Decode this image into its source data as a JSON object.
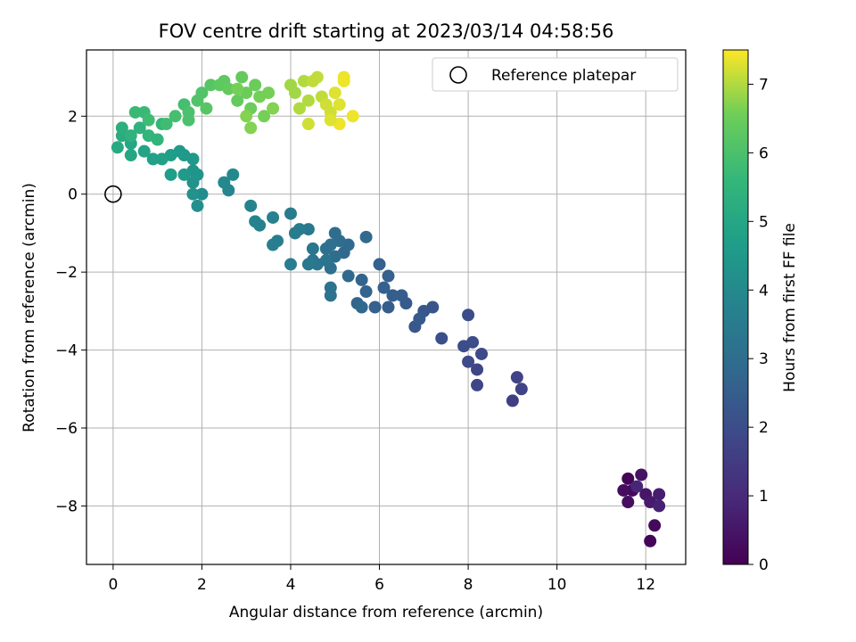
{
  "chart_data": {
    "type": "scatter",
    "title": "FOV centre drift starting at 2023/03/14 04:58:56",
    "xlabel": "Angular distance from reference (arcmin)",
    "ylabel": "Rotation from reference (arcmin)",
    "xlim": [
      -0.6,
      12.9
    ],
    "ylim": [
      -9.5,
      3.7
    ],
    "xticks": [
      0,
      2,
      4,
      6,
      8,
      10,
      12
    ],
    "yticks": [
      -8,
      -6,
      -4,
      -2,
      0,
      2
    ],
    "xtick_labels": [
      "0",
      "2",
      "4",
      "6",
      "8",
      "10",
      "12"
    ],
    "ytick_labels": [
      "−8",
      "−6",
      "−4",
      "−2",
      "0",
      "2"
    ],
    "grid": true,
    "colormap": "viridis",
    "colorbar": {
      "label": "Hours from first FF file",
      "range": [
        0,
        7.5
      ],
      "ticks": [
        0,
        1,
        2,
        3,
        4,
        5,
        6,
        7
      ],
      "tick_labels": [
        "0",
        "1",
        "2",
        "3",
        "4",
        "5",
        "6",
        "7"
      ]
    },
    "legend": {
      "position": "top-right",
      "entries": [
        {
          "label": "Reference platepar",
          "marker": "open-circle"
        }
      ]
    },
    "reference_point": {
      "x": 0,
      "y": 0
    },
    "points": [
      {
        "x": 11.6,
        "y": -7.3,
        "c": 0.1
      },
      {
        "x": 11.7,
        "y": -7.6,
        "c": 0.2
      },
      {
        "x": 11.6,
        "y": -7.9,
        "c": 0.3
      },
      {
        "x": 11.9,
        "y": -7.2,
        "c": 0.4
      },
      {
        "x": 12.0,
        "y": -7.7,
        "c": 0.5
      },
      {
        "x": 12.1,
        "y": -7.9,
        "c": 0.6
      },
      {
        "x": 12.2,
        "y": -8.5,
        "c": 0.2
      },
      {
        "x": 12.1,
        "y": -8.9,
        "c": 0.1
      },
      {
        "x": 12.3,
        "y": -7.7,
        "c": 0.7
      },
      {
        "x": 12.3,
        "y": -8.0,
        "c": 0.8
      },
      {
        "x": 11.8,
        "y": -7.5,
        "c": 0.9
      },
      {
        "x": 11.5,
        "y": -7.6,
        "c": 0.3
      },
      {
        "x": 9.0,
        "y": -5.3,
        "c": 1.6
      },
      {
        "x": 9.2,
        "y": -5.0,
        "c": 1.7
      },
      {
        "x": 9.1,
        "y": -4.7,
        "c": 1.7
      },
      {
        "x": 8.2,
        "y": -4.9,
        "c": 1.8
      },
      {
        "x": 8.2,
        "y": -4.5,
        "c": 1.8
      },
      {
        "x": 8.0,
        "y": -4.3,
        "c": 1.9
      },
      {
        "x": 8.3,
        "y": -4.1,
        "c": 1.9
      },
      {
        "x": 8.1,
        "y": -3.8,
        "c": 2.0
      },
      {
        "x": 7.9,
        "y": -3.9,
        "c": 2.0
      },
      {
        "x": 8.0,
        "y": -3.1,
        "c": 2.0
      },
      {
        "x": 7.4,
        "y": -3.7,
        "c": 2.1
      },
      {
        "x": 7.2,
        "y": -2.9,
        "c": 2.2
      },
      {
        "x": 7.0,
        "y": -3.0,
        "c": 2.3
      },
      {
        "x": 6.8,
        "y": -3.4,
        "c": 2.3
      },
      {
        "x": 6.9,
        "y": -3.2,
        "c": 2.4
      },
      {
        "x": 6.6,
        "y": -2.8,
        "c": 2.4
      },
      {
        "x": 6.5,
        "y": -2.6,
        "c": 2.5
      },
      {
        "x": 6.2,
        "y": -2.9,
        "c": 2.5
      },
      {
        "x": 6.3,
        "y": -2.6,
        "c": 2.5
      },
      {
        "x": 6.1,
        "y": -2.4,
        "c": 2.6
      },
      {
        "x": 6.2,
        "y": -2.1,
        "c": 2.6
      },
      {
        "x": 6.0,
        "y": -1.8,
        "c": 2.6
      },
      {
        "x": 5.9,
        "y": -2.9,
        "c": 2.6
      },
      {
        "x": 5.7,
        "y": -2.5,
        "c": 2.7
      },
      {
        "x": 5.6,
        "y": -2.2,
        "c": 2.7
      },
      {
        "x": 5.5,
        "y": -2.8,
        "c": 2.7
      },
      {
        "x": 5.6,
        "y": -2.9,
        "c": 2.8
      },
      {
        "x": 5.3,
        "y": -2.1,
        "c": 2.8
      },
      {
        "x": 5.7,
        "y": -1.1,
        "c": 2.9
      },
      {
        "x": 5.3,
        "y": -1.3,
        "c": 2.9
      },
      {
        "x": 5.2,
        "y": -1.5,
        "c": 2.9
      },
      {
        "x": 5.1,
        "y": -1.2,
        "c": 3.0
      },
      {
        "x": 5.0,
        "y": -1.0,
        "c": 3.0
      },
      {
        "x": 5.0,
        "y": -1.6,
        "c": 3.0
      },
      {
        "x": 4.9,
        "y": -1.3,
        "c": 3.1
      },
      {
        "x": 4.9,
        "y": -1.9,
        "c": 3.1
      },
      {
        "x": 4.8,
        "y": -1.4,
        "c": 3.1
      },
      {
        "x": 4.8,
        "y": -1.7,
        "c": 3.2
      },
      {
        "x": 4.9,
        "y": -2.4,
        "c": 3.2
      },
      {
        "x": 4.9,
        "y": -2.6,
        "c": 3.2
      },
      {
        "x": 4.6,
        "y": -1.8,
        "c": 3.3
      },
      {
        "x": 4.5,
        "y": -1.7,
        "c": 3.3
      },
      {
        "x": 4.5,
        "y": -1.4,
        "c": 3.3
      },
      {
        "x": 4.4,
        "y": -1.8,
        "c": 3.4
      },
      {
        "x": 4.4,
        "y": -0.9,
        "c": 3.4
      },
      {
        "x": 4.2,
        "y": -0.9,
        "c": 3.5
      },
      {
        "x": 4.1,
        "y": -1.0,
        "c": 3.5
      },
      {
        "x": 4.0,
        "y": -0.5,
        "c": 3.5
      },
      {
        "x": 4.0,
        "y": -1.8,
        "c": 3.6
      },
      {
        "x": 3.7,
        "y": -1.2,
        "c": 3.6
      },
      {
        "x": 3.6,
        "y": -1.3,
        "c": 3.6
      },
      {
        "x": 3.6,
        "y": -0.6,
        "c": 3.7
      },
      {
        "x": 3.3,
        "y": -0.8,
        "c": 3.7
      },
      {
        "x": 3.2,
        "y": -0.7,
        "c": 3.8
      },
      {
        "x": 3.1,
        "y": -0.3,
        "c": 3.8
      },
      {
        "x": 2.6,
        "y": 0.1,
        "c": 3.9
      },
      {
        "x": 2.5,
        "y": 0.3,
        "c": 4.0
      },
      {
        "x": 2.7,
        "y": 0.5,
        "c": 4.0
      },
      {
        "x": 2.0,
        "y": 0.0,
        "c": 4.1
      },
      {
        "x": 1.9,
        "y": -0.3,
        "c": 4.2
      },
      {
        "x": 1.8,
        "y": 0.0,
        "c": 4.3
      },
      {
        "x": 1.8,
        "y": 0.3,
        "c": 4.3
      },
      {
        "x": 1.8,
        "y": 0.6,
        "c": 4.4
      },
      {
        "x": 1.9,
        "y": 0.5,
        "c": 4.4
      },
      {
        "x": 1.8,
        "y": 0.9,
        "c": 4.5
      },
      {
        "x": 1.6,
        "y": 1.0,
        "c": 4.5
      },
      {
        "x": 1.5,
        "y": 1.1,
        "c": 4.6
      },
      {
        "x": 1.6,
        "y": 0.5,
        "c": 4.6
      },
      {
        "x": 1.3,
        "y": 0.5,
        "c": 4.7
      },
      {
        "x": 1.3,
        "y": 1.0,
        "c": 4.7
      },
      {
        "x": 1.1,
        "y": 0.9,
        "c": 4.8
      },
      {
        "x": 0.9,
        "y": 0.9,
        "c": 4.8
      },
      {
        "x": 0.7,
        "y": 1.1,
        "c": 4.9
      },
      {
        "x": 0.4,
        "y": 1.0,
        "c": 5.0
      },
      {
        "x": 0.4,
        "y": 1.3,
        "c": 5.0
      },
      {
        "x": 0.1,
        "y": 1.2,
        "c": 5.1
      },
      {
        "x": 0.2,
        "y": 1.5,
        "c": 5.2
      },
      {
        "x": 0.2,
        "y": 1.7,
        "c": 5.3
      },
      {
        "x": 0.4,
        "y": 1.5,
        "c": 5.4
      },
      {
        "x": 0.6,
        "y": 1.7,
        "c": 5.4
      },
      {
        "x": 0.8,
        "y": 1.5,
        "c": 5.5
      },
      {
        "x": 1.0,
        "y": 1.4,
        "c": 5.5
      },
      {
        "x": 1.1,
        "y": 1.8,
        "c": 5.6
      },
      {
        "x": 0.5,
        "y": 2.1,
        "c": 5.7
      },
      {
        "x": 0.7,
        "y": 2.1,
        "c": 5.7
      },
      {
        "x": 0.8,
        "y": 1.9,
        "c": 5.8
      },
      {
        "x": 1.2,
        "y": 1.8,
        "c": 5.8
      },
      {
        "x": 1.4,
        "y": 2.0,
        "c": 5.9
      },
      {
        "x": 1.6,
        "y": 2.3,
        "c": 5.9
      },
      {
        "x": 1.7,
        "y": 1.9,
        "c": 6.0
      },
      {
        "x": 1.7,
        "y": 2.1,
        "c": 6.0
      },
      {
        "x": 1.9,
        "y": 2.4,
        "c": 6.1
      },
      {
        "x": 2.0,
        "y": 2.6,
        "c": 6.1
      },
      {
        "x": 2.1,
        "y": 2.2,
        "c": 6.2
      },
      {
        "x": 2.2,
        "y": 2.8,
        "c": 6.2
      },
      {
        "x": 2.4,
        "y": 2.8,
        "c": 6.3
      },
      {
        "x": 2.5,
        "y": 2.9,
        "c": 6.3
      },
      {
        "x": 2.6,
        "y": 2.7,
        "c": 6.4
      },
      {
        "x": 2.8,
        "y": 2.4,
        "c": 6.4
      },
      {
        "x": 2.9,
        "y": 3.0,
        "c": 6.4
      },
      {
        "x": 3.0,
        "y": 2.6,
        "c": 6.5
      },
      {
        "x": 3.1,
        "y": 2.2,
        "c": 6.5
      },
      {
        "x": 3.2,
        "y": 2.8,
        "c": 6.5
      },
      {
        "x": 3.3,
        "y": 2.5,
        "c": 6.6
      },
      {
        "x": 3.4,
        "y": 2.0,
        "c": 6.6
      },
      {
        "x": 3.5,
        "y": 2.6,
        "c": 6.6
      },
      {
        "x": 3.6,
        "y": 2.2,
        "c": 6.7
      },
      {
        "x": 3.1,
        "y": 1.7,
        "c": 6.7
      },
      {
        "x": 3.0,
        "y": 2.0,
        "c": 6.7
      },
      {
        "x": 2.8,
        "y": 2.7,
        "c": 6.6
      },
      {
        "x": 4.0,
        "y": 2.8,
        "c": 6.9
      },
      {
        "x": 4.1,
        "y": 2.6,
        "c": 6.9
      },
      {
        "x": 4.2,
        "y": 2.2,
        "c": 7.0
      },
      {
        "x": 4.3,
        "y": 2.9,
        "c": 7.0
      },
      {
        "x": 4.4,
        "y": 2.4,
        "c": 7.0
      },
      {
        "x": 4.5,
        "y": 2.9,
        "c": 7.1
      },
      {
        "x": 4.6,
        "y": 3.0,
        "c": 7.1
      },
      {
        "x": 4.7,
        "y": 2.5,
        "c": 7.1
      },
      {
        "x": 4.8,
        "y": 2.3,
        "c": 7.2
      },
      {
        "x": 4.9,
        "y": 2.1,
        "c": 7.2
      },
      {
        "x": 4.4,
        "y": 1.8,
        "c": 7.2
      },
      {
        "x": 5.0,
        "y": 2.6,
        "c": 7.3
      },
      {
        "x": 5.1,
        "y": 2.3,
        "c": 7.3
      },
      {
        "x": 5.2,
        "y": 3.0,
        "c": 7.4
      },
      {
        "x": 5.2,
        "y": 2.9,
        "c": 7.4
      },
      {
        "x": 5.4,
        "y": 2.0,
        "c": 7.4
      },
      {
        "x": 5.1,
        "y": 1.8,
        "c": 7.4
      },
      {
        "x": 4.9,
        "y": 1.9,
        "c": 7.3
      }
    ]
  }
}
